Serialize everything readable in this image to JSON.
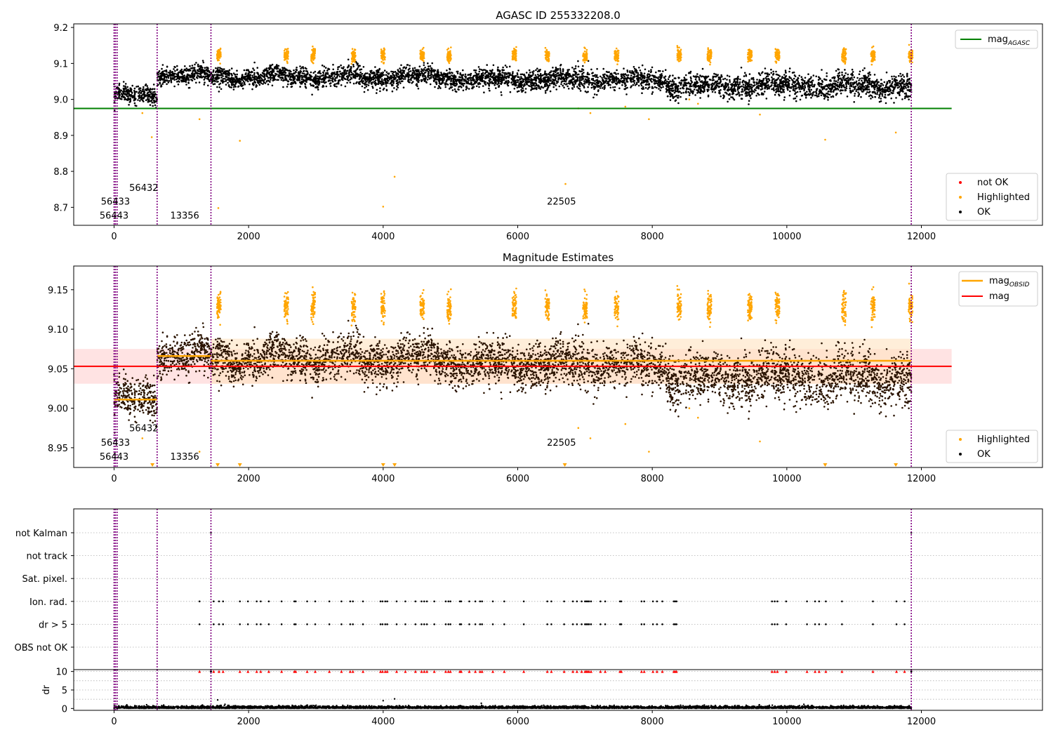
{
  "colors": {
    "ok": "#000000",
    "highlighted": "#ffa500",
    "not_ok": "#ff0000",
    "agasc_line": "#008000",
    "mag_line": "#ff0000",
    "mag_obsid_line": "#ffa500",
    "divider": "#800080",
    "band_red": "#ffcccc",
    "band_orange": "#ffe2bf"
  },
  "chart_data": [
    {
      "type": "scatter",
      "title": "AGASC ID 255332208.0",
      "xlim": [
        -600,
        13800
      ],
      "ylim": [
        8.65,
        9.21
      ],
      "x_ticks": [
        0,
        2000,
        4000,
        6000,
        8000,
        10000,
        12000
      ],
      "x_tick_labels": [
        "0",
        "2000",
        "4000",
        "6000",
        "8000",
        "10000",
        "12000"
      ],
      "y_ticks": [
        8.7,
        8.8,
        8.9,
        9.0,
        9.1,
        9.2
      ],
      "y_tick_labels": [
        "8.7",
        "8.8",
        "8.9",
        "9.0",
        "9.1",
        "9.2"
      ],
      "hline": {
        "name": "mag_AGASC",
        "y": 8.975,
        "x": [
          -600,
          12450
        ]
      },
      "obsid_boundaries": [
        0,
        20,
        45,
        640,
        1440,
        11850
      ],
      "obsid_labels": [
        {
          "text": "56432",
          "x": 320,
          "y": 8.755
        },
        {
          "text": "56433",
          "x": 20,
          "y": 8.717
        },
        {
          "text": "56443",
          "x": 0,
          "y": 8.678
        },
        {
          "text": "13356",
          "x": 1050,
          "y": 8.678
        },
        {
          "text": "22505",
          "x": 6650,
          "y": 8.717
        }
      ],
      "segments": [
        {
          "x": [
            0,
            640
          ],
          "y": 9.01,
          "sd": 0.012
        },
        {
          "x": [
            640,
            1440
          ],
          "y": 9.067,
          "sd": 0.012
        },
        {
          "x": [
            1440,
            5000
          ],
          "y": 9.062,
          "sd": 0.013
        },
        {
          "x": [
            5000,
            8200
          ],
          "y": 9.055,
          "sd": 0.014
        },
        {
          "x": [
            8200,
            11850
          ],
          "y": 9.038,
          "sd": 0.016
        }
      ],
      "highlight_clusters": [
        1560,
        2560,
        2960,
        3560,
        4000,
        4580,
        4980,
        5950,
        6440,
        7000,
        7470,
        8400,
        8850,
        9450,
        9860,
        10850,
        11280,
        11840
      ],
      "outliers": [
        {
          "x": 1270,
          "y": 8.945
        },
        {
          "x": 560,
          "y": 8.895
        },
        {
          "x": 420,
          "y": 8.962
        },
        {
          "x": 1550,
          "y": 8.698
        },
        {
          "x": 1870,
          "y": 8.885
        },
        {
          "x": 4000,
          "y": 8.702
        },
        {
          "x": 4170,
          "y": 8.785
        },
        {
          "x": 6710,
          "y": 8.765
        },
        {
          "x": 6900,
          "y": 8.975
        },
        {
          "x": 7080,
          "y": 8.962
        },
        {
          "x": 7600,
          "y": 8.98
        },
        {
          "x": 7950,
          "y": 8.945
        },
        {
          "x": 9600,
          "y": 8.958
        },
        {
          "x": 10570,
          "y": 8.888
        },
        {
          "x": 11620,
          "y": 8.908
        },
        {
          "x": 8550,
          "y": 9.0
        },
        {
          "x": 8680,
          "y": 8.988
        }
      ],
      "legends": [
        {
          "position": "upper-right",
          "entries": [
            {
              "label": "mag",
              "subscript": "AGASC",
              "marker": "line",
              "color_key": "agasc_line"
            }
          ]
        },
        {
          "position": "lower-right",
          "entries": [
            {
              "label": "not OK",
              "marker": "dot",
              "color_key": "not_ok"
            },
            {
              "label": "Highlighted",
              "marker": "dot",
              "color_key": "highlighted"
            },
            {
              "label": "OK",
              "marker": "dot",
              "color_key": "ok"
            }
          ]
        }
      ]
    },
    {
      "type": "scatter",
      "title": "Magnitude Estimates",
      "xlim": [
        -600,
        13800
      ],
      "ylim": [
        8.925,
        9.18
      ],
      "x_ticks": [
        0,
        2000,
        4000,
        6000,
        8000,
        10000,
        12000
      ],
      "x_tick_labels": [
        "0",
        "2000",
        "4000",
        "6000",
        "8000",
        "10000",
        "12000"
      ],
      "y_ticks": [
        8.95,
        9.0,
        9.05,
        9.1,
        9.15
      ],
      "y_tick_labels": [
        "8.95",
        "9.00",
        "9.05",
        "9.10",
        "9.15"
      ],
      "mag": {
        "y": 9.053,
        "band": [
          9.031,
          9.075
        ],
        "x": [
          -600,
          12450
        ]
      },
      "mag_obsid": [
        {
          "x": [
            0,
            640
          ],
          "y": 9.011
        },
        {
          "x": [
            640,
            1440
          ],
          "y": 9.066
        },
        {
          "x": [
            1440,
            11850
          ],
          "y": 9.06,
          "band": [
            9.031,
            9.088
          ]
        }
      ],
      "obsid_boundaries": [
        0,
        20,
        45,
        640,
        1440,
        11850
      ],
      "obsid_labels": [
        {
          "text": "56432",
          "x": 320,
          "y": 8.975
        },
        {
          "text": "56433",
          "x": 20,
          "y": 8.957
        },
        {
          "text": "56443",
          "x": 0,
          "y": 8.939
        },
        {
          "text": "13356",
          "x": 1050,
          "y": 8.939
        },
        {
          "text": "22505",
          "x": 6650,
          "y": 8.957
        }
      ],
      "off_scale_markers_x": [
        570,
        1540,
        1870,
        4000,
        4170,
        6700,
        10570,
        11620
      ],
      "legends": [
        {
          "position": "upper-right",
          "entries": [
            {
              "label": "mag",
              "subscript": "OBSID",
              "marker": "line",
              "color_key": "mag_obsid_line"
            },
            {
              "label": "mag",
              "marker": "line",
              "color_key": "mag_line"
            }
          ]
        },
        {
          "position": "lower-right",
          "entries": [
            {
              "label": "Highlighted",
              "marker": "dot",
              "color_key": "highlighted"
            },
            {
              "label": "OK",
              "marker": "dot",
              "color_key": "ok"
            }
          ]
        }
      ]
    },
    {
      "type": "scatter",
      "title": "",
      "xlim": [
        -600,
        13800
      ],
      "categories": [
        "not Kalman",
        "not track",
        "Sat. pixel.",
        "Ion. rad.",
        "dr > 5",
        "OBS not OK"
      ],
      "flag_points": {
        "not Kalman": [
          1440,
          11850
        ],
        "Ion. rad.": [
          1270,
          1480,
          1560,
          1620,
          1870,
          1990,
          2120,
          2180,
          2300,
          2490,
          2680,
          2700,
          2870,
          2990,
          3200,
          3380,
          3510,
          3550,
          3700,
          3960,
          3990,
          4030,
          4060,
          4200,
          4330,
          4480,
          4570,
          4610,
          4650,
          4760,
          4930,
          4970,
          5000,
          5140,
          5160,
          5280,
          5370,
          5440,
          5470,
          5630,
          5800,
          6090,
          6440,
          6500,
          6690,
          6820,
          6880,
          6950,
          7000,
          7020,
          7040,
          7060,
          7090,
          7230,
          7300,
          7520,
          7540,
          7840,
          7880,
          8010,
          8070,
          8150,
          8320,
          8340,
          8360,
          9780,
          9820,
          9860,
          9990,
          10300,
          10420,
          10480,
          10580,
          10820,
          11280,
          11630,
          11750
        ],
        "dr > 5": [
          1270,
          1480,
          1560,
          1620,
          1870,
          1990,
          2120,
          2180,
          2300,
          2490,
          2680,
          2700,
          2870,
          2990,
          3200,
          3380,
          3510,
          3550,
          3700,
          3960,
          3990,
          4030,
          4060,
          4200,
          4330,
          4480,
          4570,
          4610,
          4650,
          4760,
          4930,
          4970,
          5000,
          5140,
          5160,
          5280,
          5370,
          5440,
          5470,
          5630,
          5800,
          6090,
          6440,
          6500,
          6690,
          6820,
          6880,
          6950,
          7000,
          7020,
          7040,
          7060,
          7090,
          7230,
          7300,
          7520,
          7540,
          7840,
          7880,
          8010,
          8070,
          8150,
          8320,
          8340,
          8360,
          9780,
          9820,
          9860,
          9990,
          10300,
          10420,
          10480,
          10580,
          10820,
          11280,
          11630,
          11750
        ]
      },
      "obsid_boundaries": [
        0,
        20,
        45,
        640,
        1440,
        11850
      ]
    },
    {
      "type": "scatter",
      "title": "",
      "ylabel": "dr",
      "xlim": [
        -600,
        13800
      ],
      "ylim": [
        -0.5,
        10.5
      ],
      "x_ticks": [
        0,
        2000,
        4000,
        6000,
        8000,
        10000,
        12000
      ],
      "x_tick_labels": [
        "0",
        "2000",
        "4000",
        "6000",
        "8000",
        "10000",
        "12000"
      ],
      "y_ticks": [
        0,
        5,
        10
      ],
      "y_tick_labels": [
        "0",
        "5",
        "10"
      ],
      "clipped_marker_y": 10,
      "spikes": [
        {
          "x": 1540,
          "y": 2.3
        },
        {
          "x": 4000,
          "y": 2.1
        },
        {
          "x": 4170,
          "y": 2.6
        }
      ],
      "obsid_boundaries": [
        0,
        20,
        45,
        640,
        1440,
        11850
      ]
    }
  ]
}
